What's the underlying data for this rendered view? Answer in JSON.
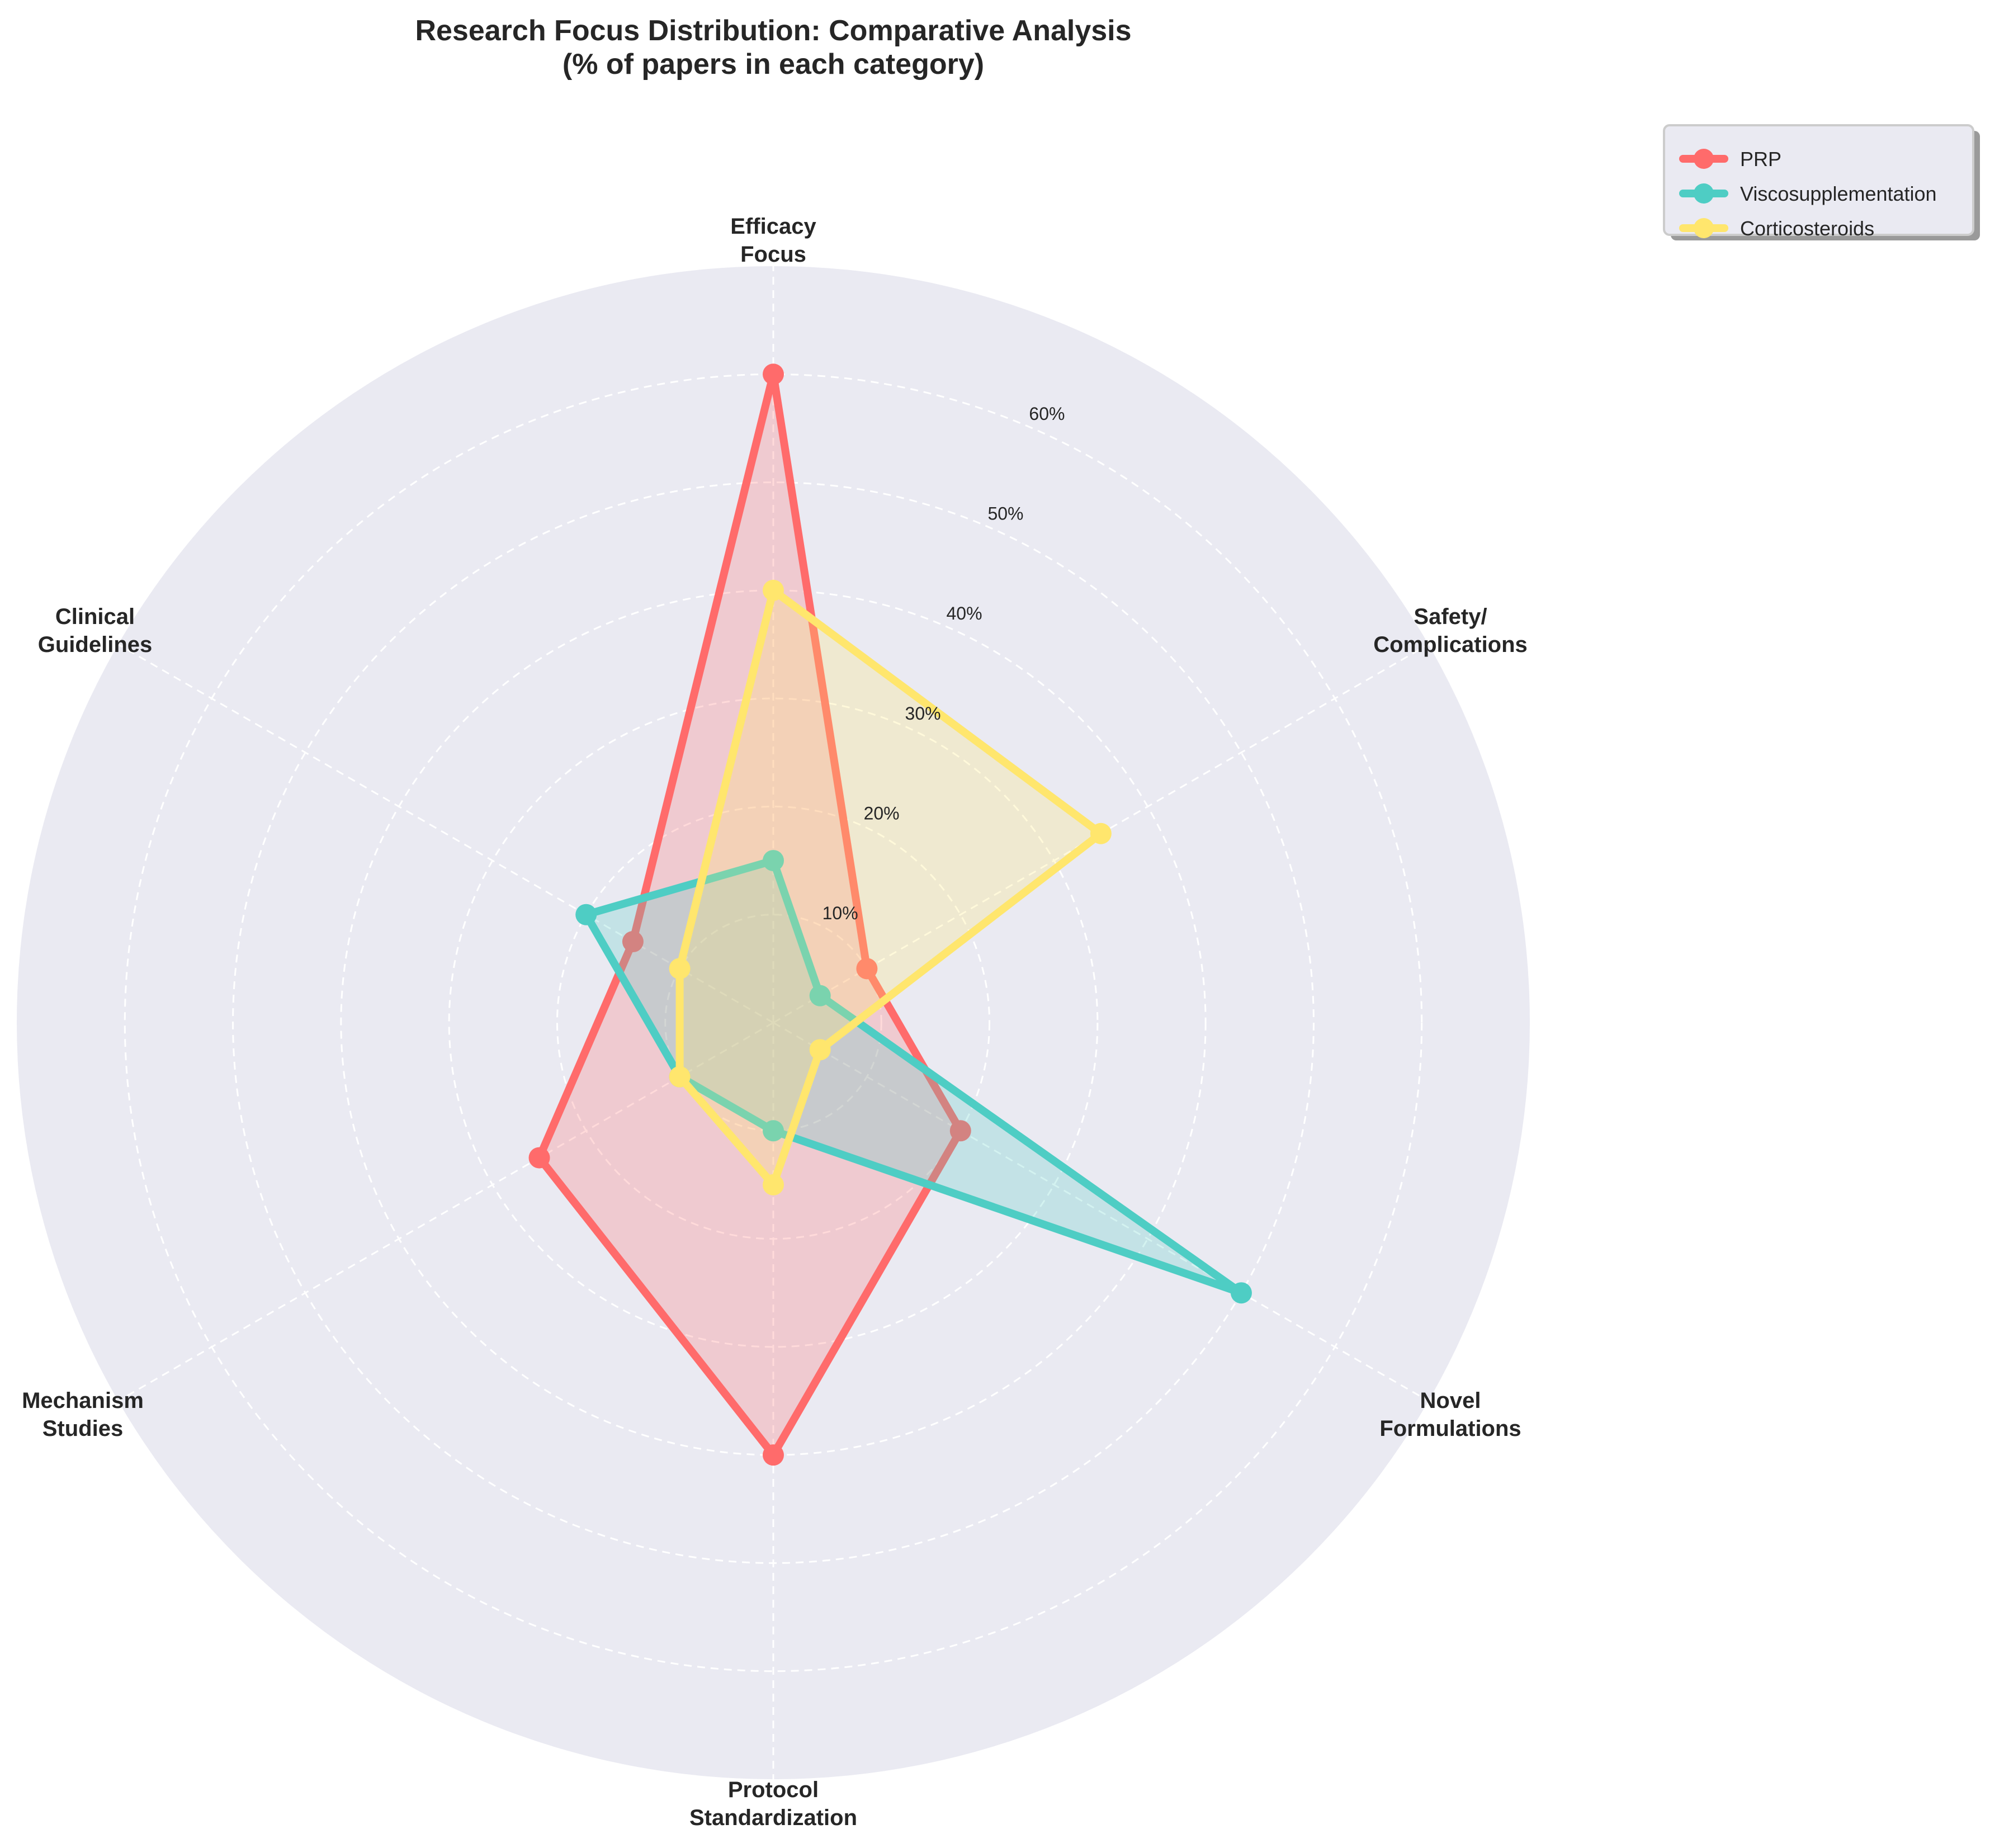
{
  "chart_data": {
    "type": "radar",
    "title": "Research Focus Distribution: Comparative Analysis",
    "subtitle": "(% of papers in each category)",
    "categories": [
      "Efficacy Focus",
      "Safety/ Complications",
      "Novel Formulations",
      "Protocol Standardization",
      "Mechanism Studies",
      "Clinical Guidelines"
    ],
    "category_lines": [
      [
        "Efficacy",
        "Focus"
      ],
      [
        "Safety/",
        "Complications"
      ],
      [
        "Novel",
        "Formulations"
      ],
      [
        "Protocol",
        "Standardization"
      ],
      [
        "Mechanism",
        "Studies"
      ],
      [
        "Clinical",
        "Guidelines"
      ]
    ],
    "series": [
      {
        "name": "PRP",
        "color": "#FF6B6B",
        "values": [
          60,
          10,
          20,
          40,
          25,
          15
        ]
      },
      {
        "name": "Viscosupplementation",
        "color": "#4ECDC4",
        "values": [
          15,
          5,
          50,
          10,
          10,
          20
        ]
      },
      {
        "name": "Corticosteroids",
        "color": "#FFE66D",
        "values": [
          40,
          35,
          5,
          15,
          10,
          10
        ]
      }
    ],
    "radial_ticks": [
      10,
      20,
      30,
      40,
      50,
      60
    ],
    "radial_tick_labels": [
      "10%",
      "20%",
      "30%",
      "40%",
      "50%",
      "60%"
    ],
    "rlim": [
      0,
      70
    ],
    "grid": true,
    "legend_position": "upper right (outside)"
  },
  "title_line1": "Research Focus Distribution: Comparative Analysis",
  "title_line2": "(% of papers in each category)",
  "legend": [
    {
      "label": "PRP",
      "color": "#FF6B6B"
    },
    {
      "label": "Viscosupplementation",
      "color": "#4ECDC4"
    },
    {
      "label": "Corticosteroids",
      "color": "#FFE66D"
    }
  ],
  "colors": {
    "plot_background": "#EAEAF2",
    "grid": "#FFFFFF",
    "text": "#262626"
  }
}
